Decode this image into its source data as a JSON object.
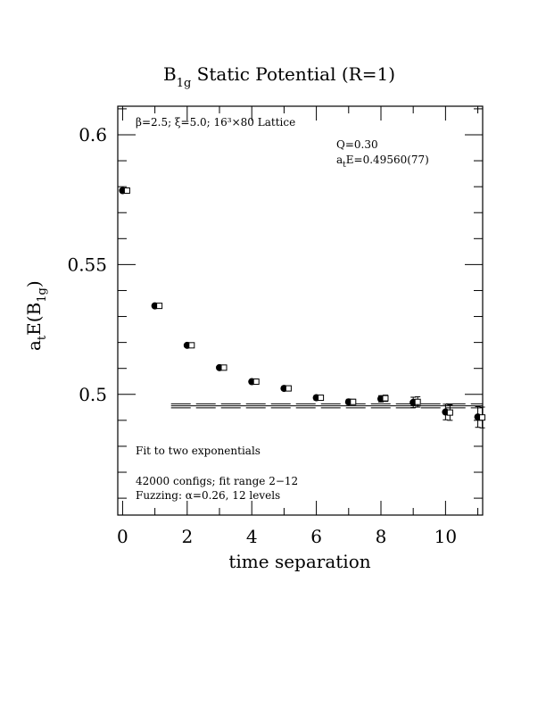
{
  "chart_data": {
    "type": "scatter",
    "title": {
      "main": "B",
      "sub": "1g",
      "rest": " Static Potential (R=1)"
    },
    "xlabel": "time separation",
    "ylabel": {
      "a": "a",
      "t": "t",
      "e": "E(B",
      "sub": "1g",
      "close": ")"
    },
    "xlim": [
      -0.15,
      11.15
    ],
    "ylim": [
      0.4535,
      0.611
    ],
    "xticks": [
      0,
      2,
      4,
      6,
      8,
      10
    ],
    "xtick_labels": [
      "0",
      "2",
      "4",
      "6",
      "8",
      "10"
    ],
    "yticks": [
      0.5,
      0.55,
      0.6
    ],
    "ytick_labels": [
      "0.5",
      "0.55",
      "0.6"
    ],
    "lattice_label": "β=2.5; ξ=5.0; 16³×80 Lattice",
    "q_label": "Q=0.30",
    "fit_energy_label": {
      "a": "a",
      "t": "t",
      "rest": "E=0.49560(77)"
    },
    "fit_label": "Fit to two exponentials",
    "configs_label": "42000 configs; fit range 2−12",
    "fuzzing_label": "Fuzzing: α=0.26, 12 levels",
    "series": [
      {
        "marker": "filled-circle",
        "points": [
          {
            "x": 0,
            "y": 0.5785,
            "err": 0.0004
          },
          {
            "x": 1,
            "y": 0.5341,
            "err": 0.0004
          },
          {
            "x": 2,
            "y": 0.5189,
            "err": 0.0005
          },
          {
            "x": 3,
            "y": 0.5103,
            "err": 0.0005
          },
          {
            "x": 4,
            "y": 0.5049,
            "err": 0.0006
          },
          {
            "x": 5,
            "y": 0.5023,
            "err": 0.0007
          },
          {
            "x": 6,
            "y": 0.4987,
            "err": 0.0009
          },
          {
            "x": 7,
            "y": 0.4971,
            "err": 0.001
          },
          {
            "x": 8,
            "y": 0.4983,
            "err": 0.0012
          },
          {
            "x": 9,
            "y": 0.4969,
            "err": 0.002
          },
          {
            "x": 10,
            "y": 0.4932,
            "err": 0.003
          },
          {
            "x": 11,
            "y": 0.4913,
            "err": 0.004
          }
        ]
      },
      {
        "marker": "open-square",
        "points": [
          {
            "x": 0,
            "y": 0.5785,
            "err": 0.0004
          },
          {
            "x": 1,
            "y": 0.5341,
            "err": 0.0004
          },
          {
            "x": 2,
            "y": 0.5189,
            "err": 0.0005
          },
          {
            "x": 3,
            "y": 0.5103,
            "err": 0.0005
          },
          {
            "x": 4,
            "y": 0.5049,
            "err": 0.0006
          },
          {
            "x": 5,
            "y": 0.5023,
            "err": 0.0007
          },
          {
            "x": 6,
            "y": 0.4987,
            "err": 0.0009
          },
          {
            "x": 7,
            "y": 0.4971,
            "err": 0.001
          },
          {
            "x": 8,
            "y": 0.4985,
            "err": 0.0012
          },
          {
            "x": 9,
            "y": 0.4971,
            "err": 0.002
          },
          {
            "x": 10,
            "y": 0.493,
            "err": 0.003
          },
          {
            "x": 11,
            "y": 0.4911,
            "err": 0.004
          }
        ]
      }
    ],
    "fit_band": {
      "x_start": 1.5,
      "x_end": 11.15,
      "center": 0.4956,
      "upper": 0.49637,
      "lower": 0.49483
    },
    "grid": false
  }
}
